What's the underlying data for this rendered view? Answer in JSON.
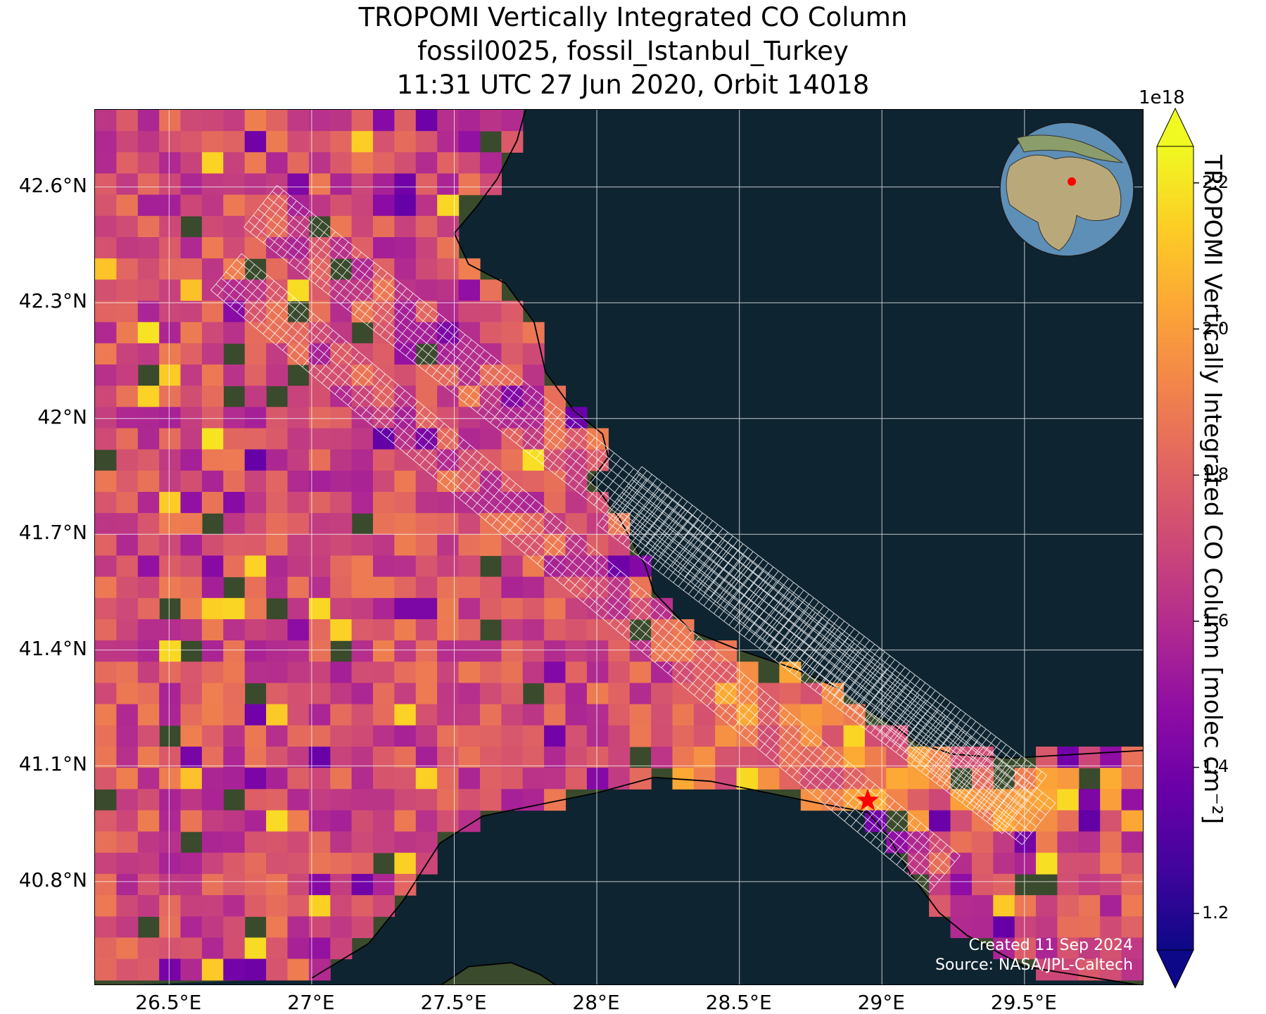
{
  "title": {
    "line1": "TROPOMI Vertically Integrated CO Column",
    "line2": "fossil0025, fossil_Istanbul_Turkey",
    "line3": "11:31 UTC 27 Jun 2020, Orbit 14018"
  },
  "map": {
    "extent": {
      "lon_min": 26.24,
      "lon_max": 29.92,
      "lat_min": 40.53,
      "lat_max": 42.8
    },
    "lat_ticks": [
      "42.6°N",
      "42.3°N",
      "42°N",
      "41.7°N",
      "41.4°N",
      "41.1°N",
      "40.8°N"
    ],
    "lon_ticks": [
      "26.5°E",
      "27°E",
      "27.5°E",
      "28°E",
      "28.5°E",
      "29°E",
      "29.5°E"
    ],
    "target": {
      "lon": 28.95,
      "lat": 41.01,
      "marker": "red-star"
    },
    "colors": {
      "sea": "#0f2431",
      "land": "#3a4a2c",
      "gridline": "#ffffff",
      "coast": "#000000",
      "target": "#ff0000",
      "target_grid": "#ffffff"
    }
  },
  "colorbar": {
    "label": "TROPOMI Vertically Integrated CO Column [molec cm⁻²]",
    "multiplier": "1e18",
    "ticks": [
      "1.2",
      "1.4",
      "1.6",
      "1.8",
      "2.0",
      "2.2"
    ],
    "vmin": 1.15,
    "vmax": 2.25,
    "colormap": "plasma",
    "extend": "both"
  },
  "credit": {
    "created": "Created 11 Sep 2024",
    "source": "Source: NASA/JPL-Caltech"
  }
}
